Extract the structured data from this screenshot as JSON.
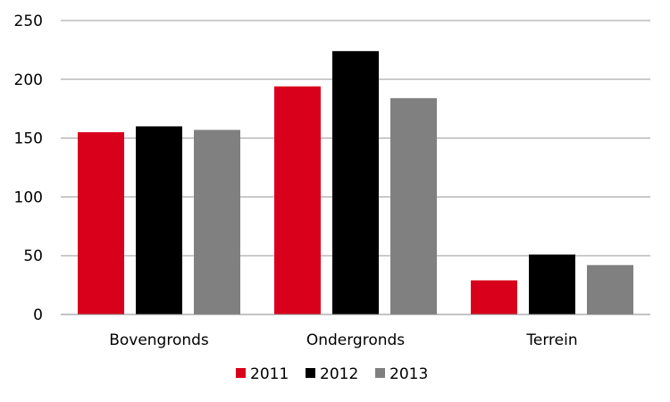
{
  "chart_data": {
    "type": "bar",
    "title": "",
    "xlabel": "",
    "ylabel": "",
    "categories": [
      "Bovengronds",
      "Ondergronds",
      "Terrein"
    ],
    "series": [
      {
        "name": "2011",
        "values": [
          155,
          194,
          29
        ],
        "color": "#d9001b"
      },
      {
        "name": "2012",
        "values": [
          160,
          224,
          51
        ],
        "color": "#000000"
      },
      {
        "name": "2013",
        "values": [
          157,
          184,
          42
        ],
        "color": "#808080"
      }
    ],
    "ylim": [
      0,
      250
    ],
    "yticks": [
      "0",
      "50",
      "100",
      "150",
      "200",
      "250"
    ],
    "grid": true,
    "legend": "bottom"
  }
}
